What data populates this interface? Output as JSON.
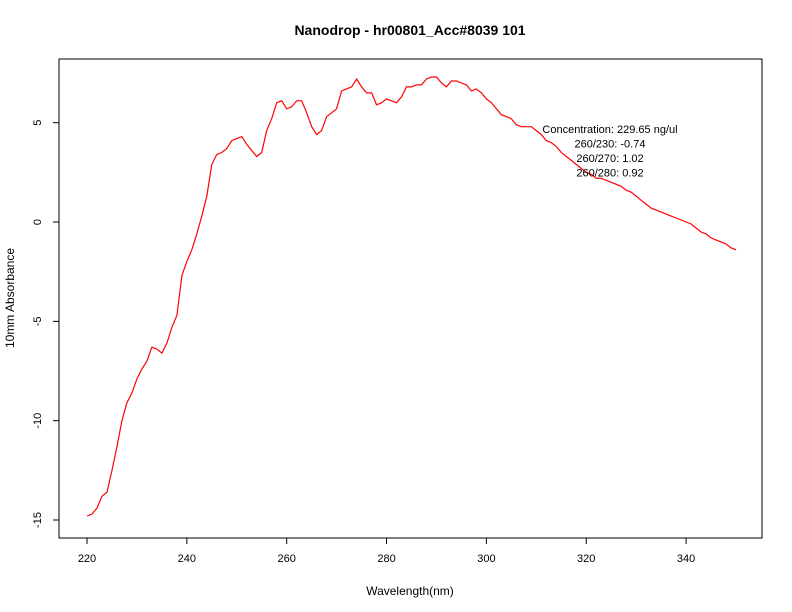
{
  "chart_data": {
    "type": "line",
    "title": "Nanodrop - hr00801_Acc#8039 101",
    "xlabel": "Wavelength(nm)",
    "ylabel": "10mm Absorbance",
    "xlim": [
      220,
      350
    ],
    "ylim": [
      -15,
      7.3
    ],
    "xticks": [
      220,
      240,
      260,
      280,
      300,
      320,
      340
    ],
    "yticks": [
      -15,
      -10,
      -5,
      0,
      5
    ],
    "grid": false,
    "line_color": "#ff0000",
    "annotations": [
      "Concentration: 229.65 ng/ul",
      "260/230: -0.74",
      "260/270: 1.02",
      "260/280: 0.92"
    ],
    "series": [
      {
        "x": [
          220,
          221,
          222,
          223,
          224,
          225,
          226,
          227,
          228,
          229,
          230,
          231,
          232,
          233,
          234,
          235,
          236,
          237,
          238,
          239,
          240,
          241,
          242,
          243,
          244,
          245,
          246,
          247,
          248,
          249,
          250,
          251,
          252,
          253,
          254,
          255,
          256,
          257,
          258,
          259,
          260,
          261,
          262,
          263,
          264,
          265,
          266,
          267,
          268,
          269,
          270,
          271,
          272,
          273,
          274,
          275,
          276,
          277,
          278,
          279,
          280,
          281,
          282,
          283,
          284,
          285,
          286,
          287,
          288,
          289,
          290,
          291,
          292,
          293,
          294,
          295,
          296,
          297,
          298,
          299,
          300,
          301,
          302,
          303,
          304,
          305,
          306,
          307,
          308,
          309,
          310,
          311,
          312,
          313,
          314,
          315,
          316,
          317,
          318,
          319,
          320,
          321,
          322,
          323,
          324,
          325,
          326,
          327,
          328,
          329,
          330,
          331,
          332,
          333,
          334,
          335,
          336,
          337,
          338,
          339,
          340,
          341,
          342,
          343,
          344,
          345,
          346,
          347,
          348,
          349,
          350
        ],
        "y": [
          -14.8,
          -14.7,
          -14.4,
          -13.8,
          -13.6,
          -12.5,
          -11.3,
          -10.0,
          -9.1,
          -8.6,
          -7.9,
          -7.4,
          -7.0,
          -6.3,
          -6.4,
          -6.6,
          -6.1,
          -5.3,
          -4.7,
          -2.7,
          -2.0,
          -1.4,
          -0.6,
          0.3,
          1.3,
          2.9,
          3.4,
          3.5,
          3.7,
          4.1,
          4.2,
          4.3,
          3.9,
          3.6,
          3.3,
          3.5,
          4.6,
          5.2,
          6.0,
          6.1,
          5.7,
          5.8,
          6.1,
          6.1,
          5.5,
          4.8,
          4.4,
          4.6,
          5.3,
          5.5,
          5.7,
          6.6,
          6.7,
          6.8,
          7.2,
          6.8,
          6.5,
          6.5,
          5.9,
          6.0,
          6.2,
          6.1,
          6.0,
          6.3,
          6.8,
          6.8,
          6.9,
          6.9,
          7.2,
          7.3,
          7.3,
          7.0,
          6.8,
          7.1,
          7.1,
          7.0,
          6.9,
          6.6,
          6.7,
          6.5,
          6.2,
          6.0,
          5.7,
          5.4,
          5.3,
          5.2,
          4.9,
          4.8,
          4.8,
          4.8,
          4.6,
          4.4,
          4.1,
          4.0,
          3.8,
          3.5,
          3.3,
          3.1,
          2.9,
          2.7,
          2.5,
          2.4,
          2.2,
          2.2,
          2.1,
          2.0,
          1.9,
          1.8,
          1.6,
          1.5,
          1.3,
          1.1,
          0.9,
          0.7,
          0.6,
          0.5,
          0.4,
          0.3,
          0.2,
          0.1,
          0.0,
          -0.1,
          -0.3,
          -0.5,
          -0.6,
          -0.8,
          -0.9,
          -1.0,
          -1.1,
          -1.3,
          -1.4
        ]
      }
    ]
  }
}
